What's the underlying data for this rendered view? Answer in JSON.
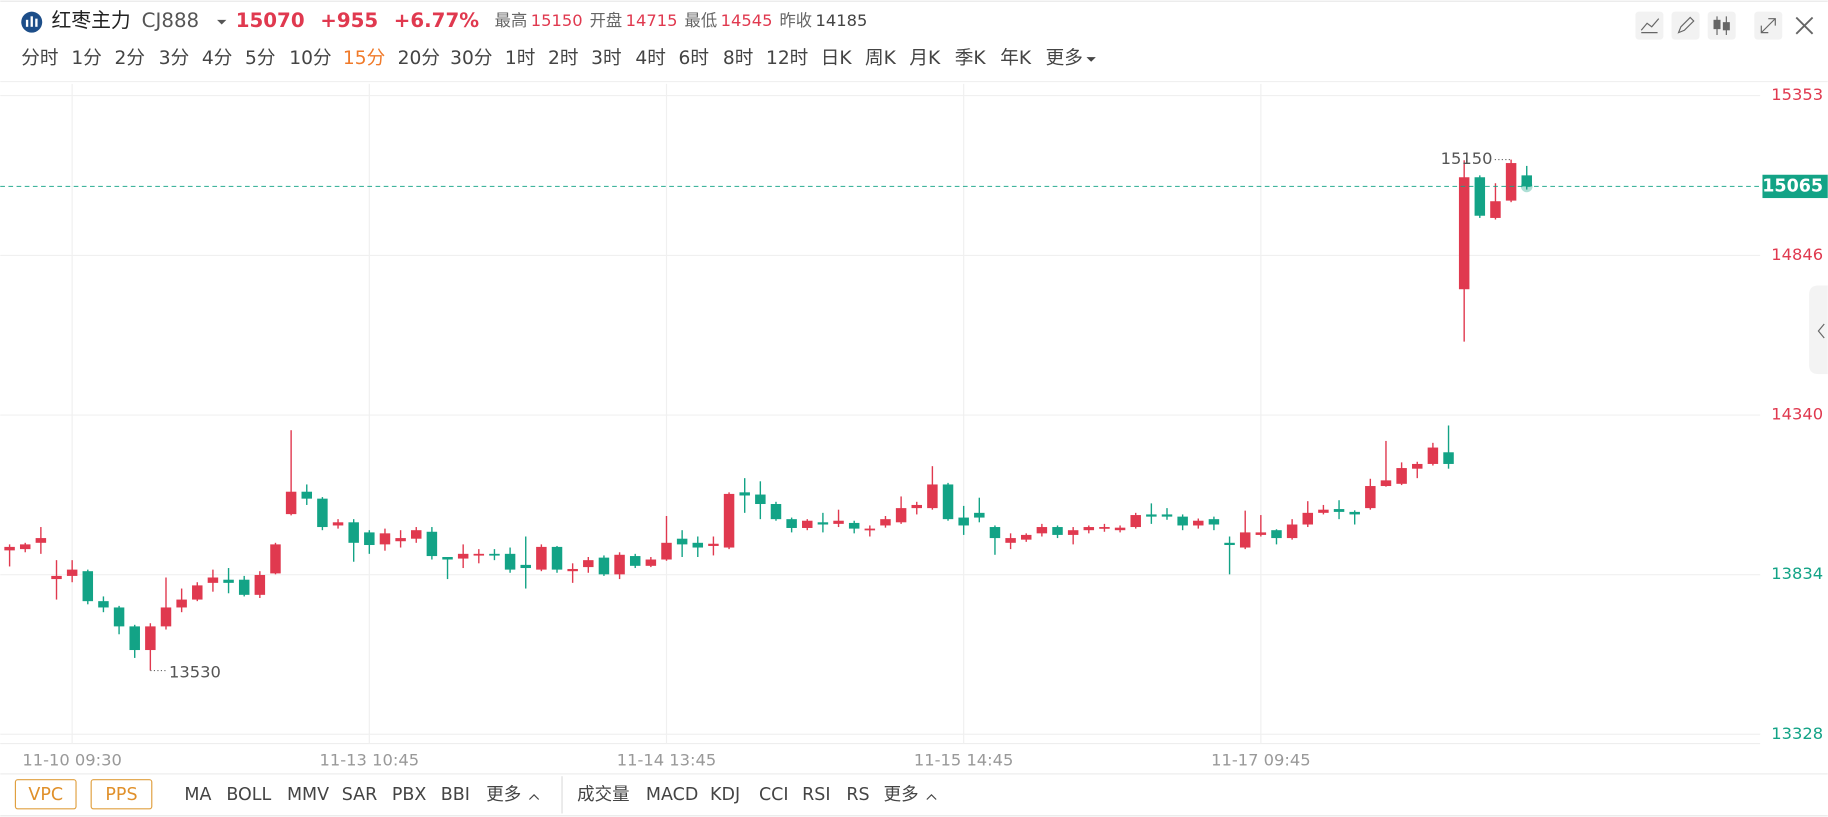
{
  "header": {
    "name": "红枣主力",
    "code": "CJ888",
    "price": "15070",
    "change": "+955",
    "change_pct": "+6.77%",
    "stats": [
      {
        "label": "最高",
        "value": "15150"
      },
      {
        "label": "开盘",
        "value": "14715"
      },
      {
        "label": "最低",
        "value": "14545"
      },
      {
        "label": "昨收",
        "value": "14185"
      }
    ]
  },
  "periods": {
    "items": [
      "分时",
      "1分",
      "2分",
      "3分",
      "4分",
      "5分",
      "10分",
      "15分",
      "20分",
      "30分",
      "1时",
      "2时",
      "3时",
      "4时",
      "6时",
      "8时",
      "12时",
      "日K",
      "周K",
      "月K",
      "季K",
      "年K",
      "更多"
    ],
    "selected": 7
  },
  "indicator_bar": {
    "main_buttons": [
      "VPC",
      "PPS"
    ],
    "main_indicators": [
      "MA",
      "BOLL",
      "MMV",
      "SAR",
      "PBX",
      "BBI",
      "更多"
    ],
    "sub_indicators": [
      "成交量",
      "MACD",
      "KDJ",
      "CCI",
      "RSI",
      "RS",
      "更多"
    ]
  },
  "chart_data": {
    "type": "candlestick",
    "up_color": "#e0394f",
    "down_color": "#13a386",
    "categories": [
      null,
      null,
      null,
      null,
      "11-10 09:30",
      null,
      null,
      null,
      null,
      null,
      null,
      null,
      null,
      null,
      null,
      null,
      null,
      null,
      null,
      null,
      null,
      null,
      null,
      "11-13 10:45",
      null,
      null,
      null,
      null,
      null,
      null,
      null,
      null,
      null,
      null,
      null,
      null,
      null,
      null,
      null,
      null,
      null,
      null,
      "11-14 13:45",
      null,
      null,
      null,
      null,
      null,
      null,
      null,
      null,
      null,
      null,
      null,
      null,
      null,
      null,
      null,
      null,
      null,
      null,
      "11-15 14:45",
      null,
      null,
      null,
      null,
      null,
      null,
      null,
      null,
      null,
      null,
      null,
      null,
      null,
      null,
      null,
      null,
      null,
      null,
      "11-17 09:45",
      null,
      null,
      null,
      null,
      null,
      null,
      null,
      null,
      null,
      null,
      null,
      null,
      null,
      null,
      null,
      null,
      null
    ],
    "open": [
      13911,
      13915,
      13935,
      13820,
      13830,
      13845,
      13750,
      13730,
      13670,
      13595,
      13670,
      13730,
      13755,
      13808,
      13818,
      13818,
      13770,
      13838,
      14026,
      14097,
      14075,
      13990,
      14000,
      13968,
      13930,
      13940,
      13948,
      13970,
      13890,
      13885,
      13895,
      13900,
      13900,
      13865,
      13850,
      13922,
      13845,
      13858,
      13888,
      13835,
      13893,
      13862,
      13882,
      13948,
      13935,
      13925,
      13920,
      14095,
      14088,
      14058,
      14010,
      13982,
      14000,
      13995,
      13998,
      13975,
      13990,
      14000,
      14045,
      14045,
      14120,
      14015,
      14030,
      13985,
      13935,
      13945,
      13965,
      13985,
      13960,
      13975,
      13980,
      13975,
      13985,
      14025,
      14025,
      14018,
      13990,
      14010,
      13935,
      13920,
      13960,
      13975,
      13950,
      13993,
      14030,
      14042,
      14033,
      14045,
      14115,
      14122,
      14170,
      14185,
      14222,
      14739,
      15094,
      14965,
      15020,
      15100
    ],
    "high": [
      13930,
      13935,
      13985,
      13880,
      13880,
      13850,
      13765,
      13735,
      13675,
      13680,
      13825,
      13790,
      13810,
      13850,
      13855,
      13830,
      13845,
      13935,
      14292,
      14120,
      14080,
      14010,
      14010,
      13975,
      13980,
      13975,
      13985,
      13985,
      13890,
      13930,
      13915,
      13915,
      13920,
      13955,
      13930,
      13925,
      13870,
      13890,
      13895,
      13905,
      13900,
      13890,
      14020,
      13975,
      13955,
      13955,
      14095,
      14140,
      14130,
      14065,
      14015,
      14010,
      14030,
      14040,
      14005,
      13990,
      14020,
      14082,
      14065,
      14178,
      14125,
      14052,
      14078,
      13990,
      13965,
      13965,
      13995,
      13990,
      13985,
      13990,
      13995,
      13990,
      14030,
      14060,
      14045,
      14025,
      14012,
      14018,
      13955,
      14037,
      14023,
      13978,
      14010,
      14067,
      14055,
      14070,
      14038,
      14138,
      14258,
      14190,
      14192,
      14252,
      14307,
      15148,
      15100,
      15075,
      15150,
      15130
    ],
    "low": [
      13860,
      13905,
      13900,
      13755,
      13810,
      13740,
      13715,
      13645,
      13570,
      13530,
      13660,
      13715,
      13750,
      13780,
      13775,
      13765,
      13760,
      13835,
      14022,
      14055,
      13975,
      13980,
      13875,
      13900,
      13910,
      13920,
      13935,
      13882,
      13820,
      13855,
      13870,
      13880,
      13840,
      13790,
      13845,
      13840,
      13808,
      13840,
      13830,
      13820,
      13855,
      13858,
      13878,
      13890,
      13890,
      13895,
      13915,
      14030,
      14010,
      14005,
      13968,
      13975,
      13968,
      13985,
      13965,
      13955,
      13983,
      13995,
      14025,
      14040,
      14005,
      13960,
      14000,
      13897,
      13915,
      13938,
      13955,
      13950,
      13930,
      13965,
      13970,
      13968,
      13980,
      13995,
      14008,
      13975,
      13980,
      13975,
      13835,
      13915,
      13955,
      13930,
      13945,
      13985,
      14025,
      14010,
      13993,
      14040,
      14113,
      14118,
      14140,
      14180,
      14170,
      14573,
      14965,
      14960,
      15015,
      15055
    ],
    "close": [
      13922,
      13930,
      13950,
      13830,
      13850,
      13750,
      13730,
      13670,
      13595,
      13670,
      13730,
      13755,
      13800,
      13825,
      13808,
      13770,
      13833,
      13930,
      14097,
      14075,
      13985,
      14000,
      13935,
      13928,
      13965,
      13950,
      13975,
      13893,
      13882,
      13900,
      13900,
      13895,
      13850,
      13855,
      13922,
      13850,
      13852,
      13880,
      13835,
      13897,
      13862,
      13882,
      13935,
      13930,
      13920,
      13932,
      14090,
      14085,
      14058,
      14010,
      13982,
      14005,
      13993,
      14005,
      13980,
      13980,
      14010,
      14045,
      14055,
      14120,
      14010,
      13990,
      14015,
      13950,
      13950,
      13960,
      13985,
      13960,
      13975,
      13985,
      13985,
      13983,
      14023,
      14018,
      14018,
      13990,
      14005,
      13993,
      13928,
      13968,
      13968,
      13950,
      13993,
      14030,
      14040,
      14033,
      14025,
      14115,
      14133,
      14172,
      14185,
      14237,
      14185,
      15094,
      14972,
      15018,
      15139,
      15065
    ],
    "ylim": [
      13328,
      15353
    ],
    "yticks": [
      13328,
      13834,
      14340,
      14846,
      15353
    ],
    "grid": true,
    "last_price": 15065,
    "max_annotation": 15150,
    "min_annotation": 13530
  }
}
